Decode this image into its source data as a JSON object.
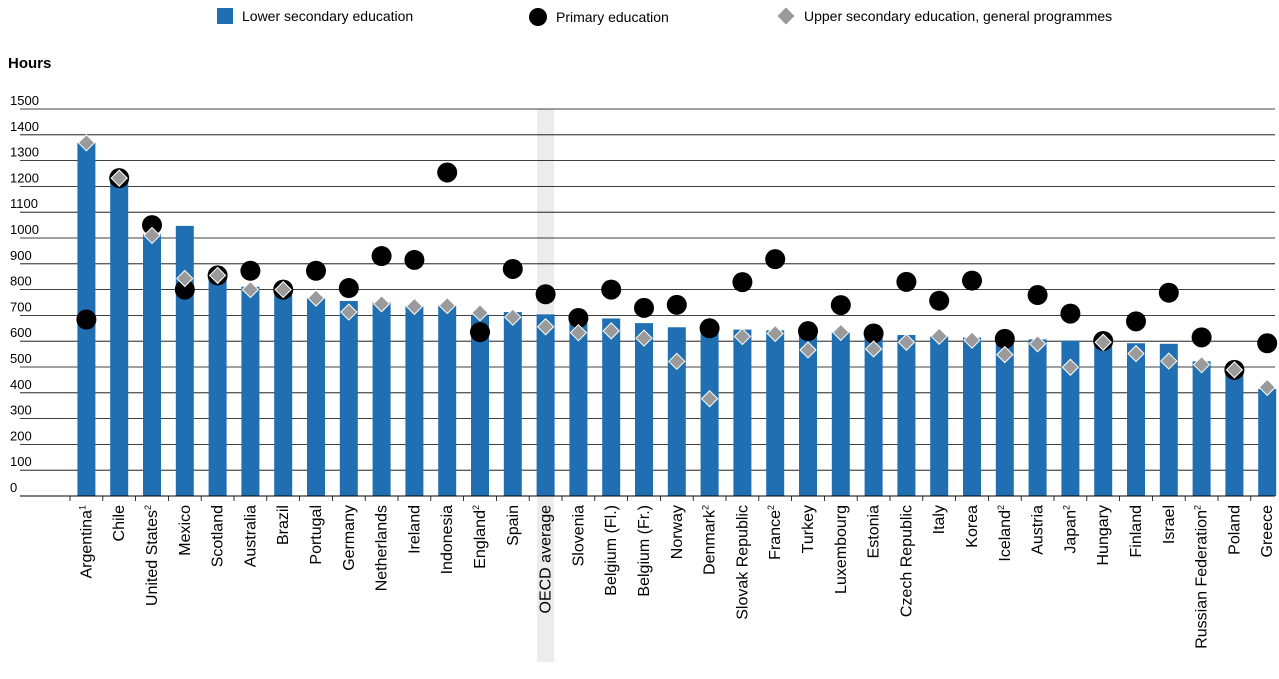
{
  "legend": {
    "lower_secondary": "Lower secondary education",
    "primary": "Primary education",
    "upper_secondary": "Upper secondary education, general programmes"
  },
  "colors": {
    "lower_secondary": "#1f6fb2",
    "primary": "#000000",
    "upper_secondary": "#9a9a9a",
    "oecd_highlight": "#ececec"
  },
  "chart_data": {
    "type": "bar",
    "ylabel": "Hours",
    "ylim": [
      0,
      1500
    ],
    "yticks": [
      0,
      100,
      200,
      300,
      400,
      500,
      600,
      700,
      800,
      900,
      1000,
      1100,
      1200,
      1300,
      1400,
      1500
    ],
    "grid": true,
    "legend_position": "top",
    "highlight_category": "OECD average",
    "categories": [
      {
        "name": "Argentina",
        "sup": "1"
      },
      {
        "name": "Chile",
        "sup": ""
      },
      {
        "name": "United States",
        "sup": "2"
      },
      {
        "name": "Mexico",
        "sup": ""
      },
      {
        "name": "Scotland",
        "sup": ""
      },
      {
        "name": "Australia",
        "sup": ""
      },
      {
        "name": "Brazil",
        "sup": ""
      },
      {
        "name": "Portugal",
        "sup": ""
      },
      {
        "name": "Germany",
        "sup": ""
      },
      {
        "name": "Netherlands",
        "sup": ""
      },
      {
        "name": "Ireland",
        "sup": ""
      },
      {
        "name": "Indonesia",
        "sup": ""
      },
      {
        "name": "England",
        "sup": "2"
      },
      {
        "name": "Spain",
        "sup": ""
      },
      {
        "name": "OECD average",
        "sup": ""
      },
      {
        "name": "Slovenia",
        "sup": ""
      },
      {
        "name": "Belgium (Fl.)",
        "sup": ""
      },
      {
        "name": "Belgium (Fr.)",
        "sup": ""
      },
      {
        "name": "Norway",
        "sup": ""
      },
      {
        "name": "Denmark",
        "sup": "2"
      },
      {
        "name": "Slovak Republic",
        "sup": ""
      },
      {
        "name": "France",
        "sup": "2"
      },
      {
        "name": "Turkey",
        "sup": ""
      },
      {
        "name": "Luxembourg",
        "sup": ""
      },
      {
        "name": "Estonia",
        "sup": ""
      },
      {
        "name": "Czech Republic",
        "sup": ""
      },
      {
        "name": "Italy",
        "sup": ""
      },
      {
        "name": "Korea",
        "sup": ""
      },
      {
        "name": "Iceland",
        "sup": "2"
      },
      {
        "name": "Austria",
        "sup": ""
      },
      {
        "name": "Japan",
        "sup": "2"
      },
      {
        "name": "Hungary",
        "sup": ""
      },
      {
        "name": "Finland",
        "sup": ""
      },
      {
        "name": "Israel",
        "sup": ""
      },
      {
        "name": "Russian Federation",
        "sup": "2"
      },
      {
        "name": "Poland",
        "sup": ""
      },
      {
        "name": "Greece",
        "sup": ""
      }
    ],
    "series": [
      {
        "name": "Lower secondary education",
        "kind": "bar",
        "values": [
          1369,
          1232,
          1015,
          1047,
          855,
          811,
          800,
          767,
          756,
          750,
          735,
          738,
          703,
          713,
          704,
          690,
          688,
          670,
          654,
          648,
          645,
          642,
          629,
          634,
          619,
          624,
          619,
          614,
          609,
          607,
          602,
          601,
          592,
          590,
          522,
          489,
          415
        ]
      },
      {
        "name": "Primary education",
        "kind": "dot",
        "values": [
          684,
          1232,
          1050,
          800,
          855,
          873,
          800,
          873,
          806,
          930,
          915,
          1254,
          635,
          880,
          782,
          690,
          800,
          729,
          741,
          650,
          829,
          918,
          639,
          740,
          630,
          830,
          757,
          835,
          609,
          779,
          707,
          601,
          677,
          788,
          615,
          489,
          592
        ]
      },
      {
        "name": "Upper secondary education, general programmes",
        "kind": "diamond",
        "values": [
          1369,
          1232,
          1010,
          843,
          855,
          800,
          800,
          767,
          713,
          745,
          735,
          738,
          710,
          693,
          656,
          633,
          640,
          612,
          522,
          377,
          618,
          630,
          566,
          634,
          570,
          596,
          619,
          604,
          548,
          590,
          499,
          596,
          552,
          523,
          509,
          489,
          421
        ]
      }
    ]
  }
}
